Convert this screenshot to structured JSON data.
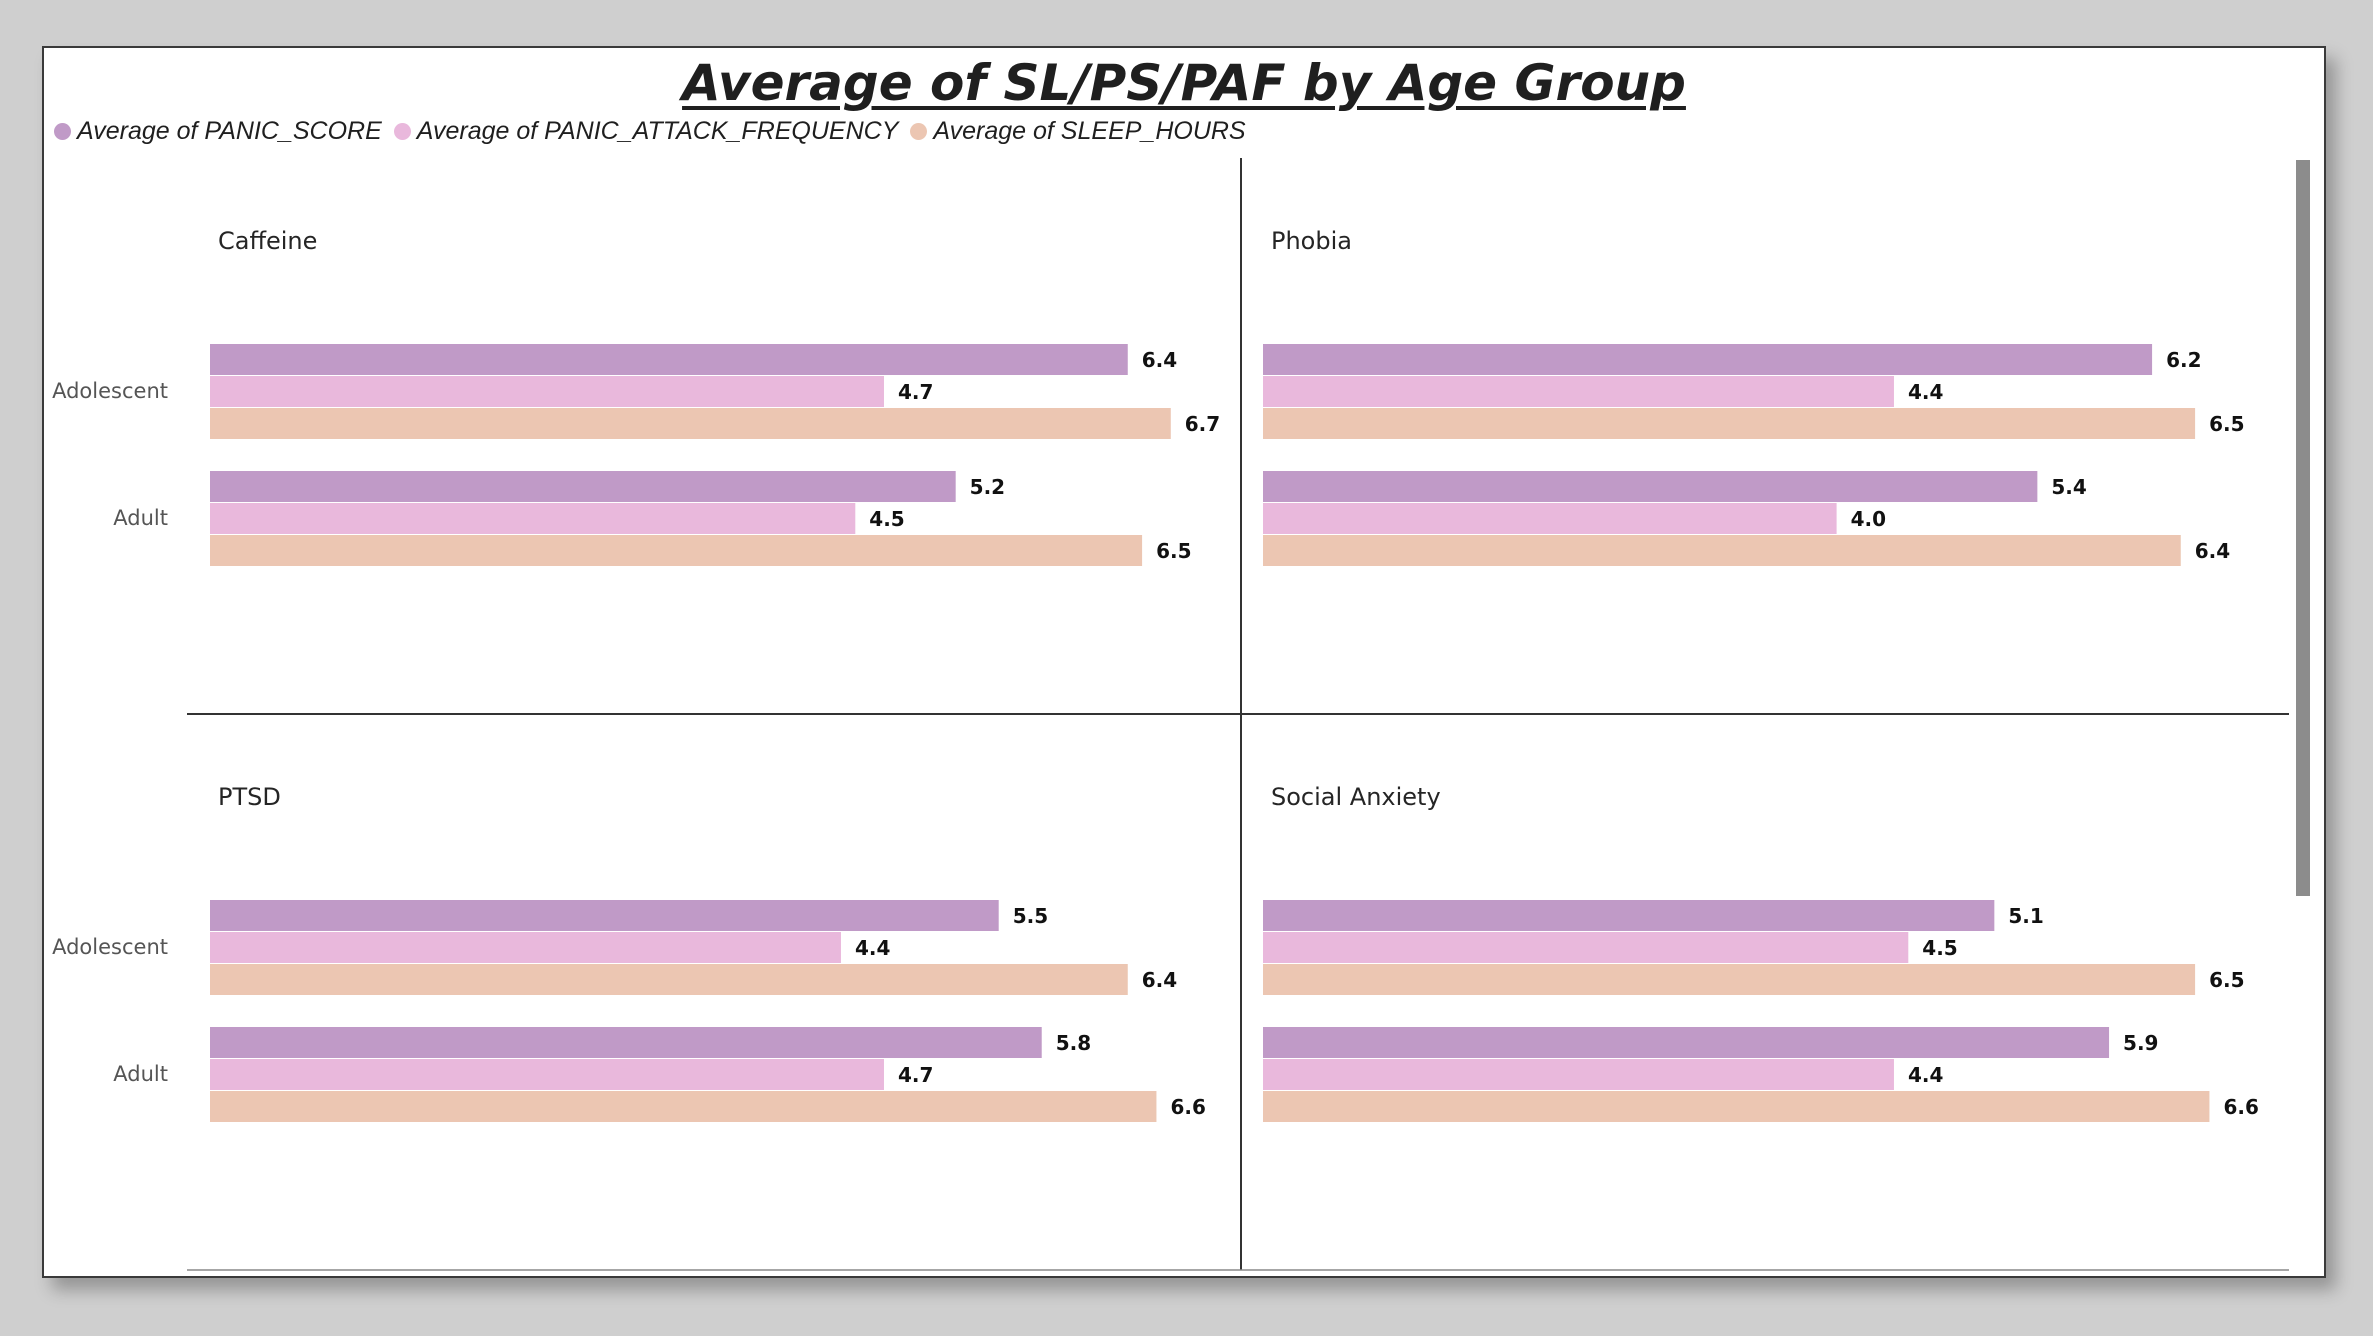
{
  "chart_data": {
    "type": "bar",
    "orientation": "horizontal",
    "title": "Average of SL/PS/PAF by Age Group",
    "legend_position": "top-left",
    "series": [
      {
        "name": "Average of PANIC_SCORE",
        "color": "#c09ac7"
      },
      {
        "name": "Average of PANIC_ATTACK_FREQUENCY",
        "color": "#e9b8dc"
      },
      {
        "name": "Average of SLEEP_HOURS",
        "color": "#ecc6b2"
      }
    ],
    "xlim": [
      0,
      7
    ],
    "panels": [
      {
        "title": "Caffeine",
        "categories": [
          "Adolescent",
          "Adult"
        ],
        "values": [
          [
            6.4,
            4.7,
            6.7
          ],
          [
            5.2,
            4.5,
            6.5
          ]
        ]
      },
      {
        "title": "Phobia",
        "categories": [
          "Adolescent",
          "Adult"
        ],
        "values": [
          [
            6.2,
            4.4,
            6.5
          ],
          [
            5.4,
            4.0,
            6.4
          ]
        ]
      },
      {
        "title": "PTSD",
        "categories": [
          "Adolescent",
          "Adult"
        ],
        "values": [
          [
            5.5,
            4.4,
            6.4
          ],
          [
            5.8,
            4.7,
            6.6
          ]
        ]
      },
      {
        "title": "Social Anxiety",
        "categories": [
          "Adolescent",
          "Adult"
        ],
        "values": [
          [
            5.1,
            4.5,
            6.5
          ],
          [
            5.9,
            4.4,
            6.6
          ]
        ]
      }
    ]
  }
}
